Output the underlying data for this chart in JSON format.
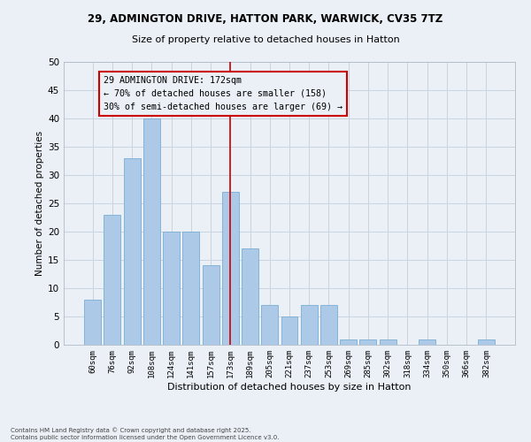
{
  "title_line1": "29, ADMINGTON DRIVE, HATTON PARK, WARWICK, CV35 7TZ",
  "title_line2": "Size of property relative to detached houses in Hatton",
  "xlabel": "Distribution of detached houses by size in Hatton",
  "ylabel": "Number of detached properties",
  "categories": [
    "60sqm",
    "76sqm",
    "92sqm",
    "108sqm",
    "124sqm",
    "141sqm",
    "157sqm",
    "173sqm",
    "189sqm",
    "205sqm",
    "221sqm",
    "237sqm",
    "253sqm",
    "269sqm",
    "285sqm",
    "302sqm",
    "318sqm",
    "334sqm",
    "350sqm",
    "366sqm",
    "382sqm"
  ],
  "values": [
    8,
    23,
    33,
    40,
    20,
    20,
    14,
    27,
    17,
    7,
    5,
    7,
    7,
    1,
    1,
    1,
    0,
    1,
    0,
    0,
    1
  ],
  "bar_color": "#adc9e8",
  "bar_edge_color": "#7aaed4",
  "annotation_title": "29 ADMINGTON DRIVE: 172sqm",
  "annotation_line2": "← 70% of detached houses are smaller (158)",
  "annotation_line3": "30% of semi-detached houses are larger (69) →",
  "annotation_box_color": "#cc0000",
  "ylim": [
    0,
    50
  ],
  "yticks": [
    0,
    5,
    10,
    15,
    20,
    25,
    30,
    35,
    40,
    45,
    50
  ],
  "footer_line1": "Contains HM Land Registry data © Crown copyright and database right 2025.",
  "footer_line2": "Contains public sector information licensed under the Open Government Licence v3.0.",
  "bg_color": "#eaf0f6",
  "grid_color": "#c8d4e0"
}
